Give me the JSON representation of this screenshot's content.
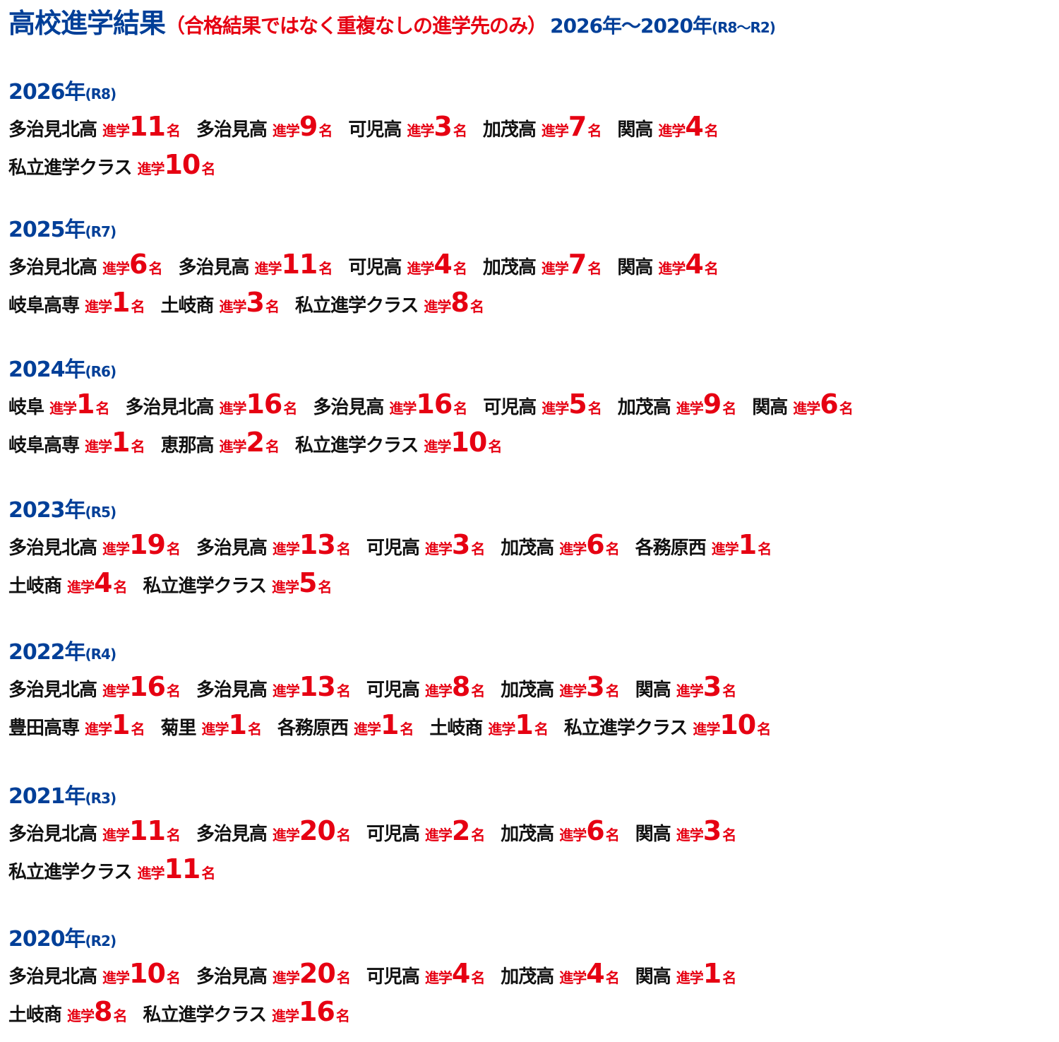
{
  "title": {
    "main": "高校進学結果",
    "note": "（合格結果ではなく重複なしの進学先のみ）",
    "range": "2026年〜2020年",
    "range_era": "(R8〜R2)"
  },
  "labels": {
    "shingaku": "進学",
    "unit": "名"
  },
  "colors": {
    "heading_blue": "#003f98",
    "accent_red": "#e60012",
    "text": "#111111"
  },
  "years": [
    {
      "year": "2026年",
      "era": "(R8)",
      "rows": [
        [
          {
            "school": "多治見北高",
            "count": "11"
          },
          {
            "school": "多治見高",
            "count": "9"
          },
          {
            "school": "可児高",
            "count": "3"
          },
          {
            "school": "加茂高",
            "count": "7"
          },
          {
            "school": "関高",
            "count": "4"
          }
        ],
        [
          {
            "school": "私立進学クラス",
            "count": "10"
          }
        ]
      ]
    },
    {
      "year": "2025年",
      "era": "(R7)",
      "rows": [
        [
          {
            "school": "多治見北高",
            "count": "6"
          },
          {
            "school": "多治見高",
            "count": "11"
          },
          {
            "school": "可児高",
            "count": "4"
          },
          {
            "school": "加茂高",
            "count": "7"
          },
          {
            "school": "関高",
            "count": "4"
          }
        ],
        [
          {
            "school": "岐阜高専",
            "count": "1"
          },
          {
            "school": "土岐商",
            "count": "3"
          },
          {
            "school": "私立進学クラス",
            "count": "8"
          }
        ]
      ]
    },
    {
      "year": "2024年",
      "era": "(R6)",
      "rows": [
        [
          {
            "school": "岐阜",
            "count": "1"
          },
          {
            "school": "多治見北高",
            "count": "16"
          },
          {
            "school": "多治見高",
            "count": "16"
          },
          {
            "school": "可児高",
            "count": "5"
          },
          {
            "school": "加茂高",
            "count": "9"
          },
          {
            "school": "関高",
            "count": "6"
          }
        ],
        [
          {
            "school": "岐阜高専",
            "count": "1"
          },
          {
            "school": "恵那高",
            "count": "2"
          },
          {
            "school": "私立進学クラス",
            "count": "10"
          }
        ]
      ]
    },
    {
      "year": "2023年",
      "era": "(R5)",
      "rows": [
        [
          {
            "school": "多治見北高",
            "count": "19"
          },
          {
            "school": "多治見高",
            "count": "13"
          },
          {
            "school": "可児高",
            "count": "3"
          },
          {
            "school": "加茂高",
            "count": "6"
          },
          {
            "school": "各務原西",
            "count": "1"
          }
        ],
        [
          {
            "school": "土岐商",
            "count": "4"
          },
          {
            "school": "私立進学クラス",
            "count": "5"
          }
        ]
      ]
    },
    {
      "year": "2022年",
      "era": "(R4)",
      "rows": [
        [
          {
            "school": "多治見北高",
            "count": "16"
          },
          {
            "school": "多治見高",
            "count": "13"
          },
          {
            "school": "可児高",
            "count": "8"
          },
          {
            "school": "加茂高",
            "count": "3"
          },
          {
            "school": "関高",
            "count": "3"
          }
        ],
        [
          {
            "school": "豊田高専",
            "count": "1"
          },
          {
            "school": "菊里",
            "count": "1"
          },
          {
            "school": "各務原西",
            "count": "1"
          },
          {
            "school": "土岐商",
            "count": "1"
          },
          {
            "school": "私立進学クラス",
            "count": "10"
          }
        ]
      ]
    },
    {
      "year": "2021年",
      "era": "(R3)",
      "rows": [
        [
          {
            "school": "多治見北高",
            "count": "11"
          },
          {
            "school": "多治見高",
            "count": "20"
          },
          {
            "school": "可児高",
            "count": "2"
          },
          {
            "school": "加茂高",
            "count": "6"
          },
          {
            "school": "関高",
            "count": "3"
          }
        ],
        [
          {
            "school": "私立進学クラス",
            "count": "11"
          }
        ]
      ]
    },
    {
      "year": "2020年",
      "era": "(R2)",
      "rows": [
        [
          {
            "school": "多治見北高",
            "count": "10"
          },
          {
            "school": "多治見高",
            "count": "20"
          },
          {
            "school": "可児高",
            "count": "4"
          },
          {
            "school": "加茂高",
            "count": "4"
          },
          {
            "school": "関高",
            "count": "1"
          }
        ],
        [
          {
            "school": "土岐商",
            "count": "8"
          },
          {
            "school": "私立進学クラス",
            "count": "16"
          }
        ]
      ]
    }
  ]
}
